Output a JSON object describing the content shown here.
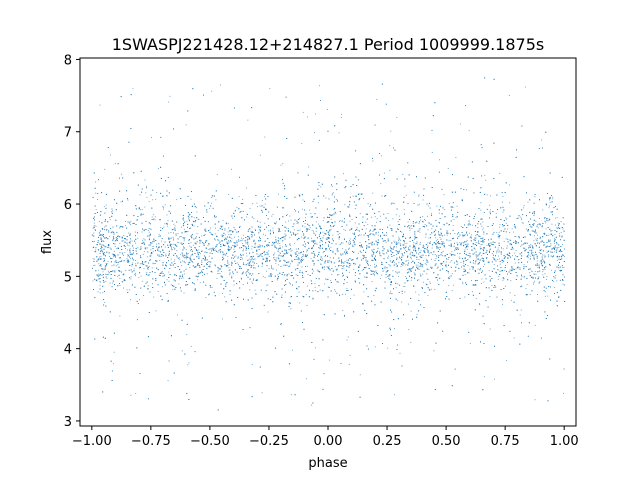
{
  "chart_data": {
    "type": "scatter",
    "title": "1SWASPJ221428.12+214827.1 Period 1009999.1875s",
    "xlabel": "phase",
    "ylabel": "flux",
    "xlim": [
      -1.05,
      1.05
    ],
    "ylim": [
      2.93,
      8.02
    ],
    "xticks": [
      -1.0,
      -0.75,
      -0.5,
      -0.25,
      0.0,
      0.25,
      0.5,
      0.75,
      1.0
    ],
    "xtick_labels": [
      "−1.00",
      "−0.75",
      "−0.50",
      "−0.25",
      "0.00",
      "0.25",
      "0.50",
      "0.75",
      "1.00"
    ],
    "yticks": [
      3,
      4,
      5,
      6,
      7,
      8
    ],
    "ytick_labels": [
      "3",
      "4",
      "5",
      "6",
      "7",
      "8"
    ],
    "grid": false,
    "point_color": "#1f77b4",
    "series": [
      {
        "phase_range": [
          -1.0,
          1.0
        ],
        "baseline_flux": 5.35,
        "baseline_spread": 0.35,
        "upper_band_flux": 6.0,
        "min_flux": 3.15,
        "max_flux": 7.8,
        "density_note": "dense"
      }
    ]
  }
}
